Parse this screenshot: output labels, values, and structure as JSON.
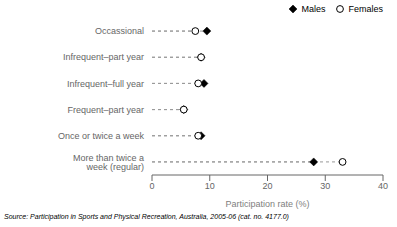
{
  "chart_data": {
    "type": "dot",
    "orientation": "horizontal",
    "categories": [
      "More than twice a week (regular)",
      "Once or twice a week",
      "Frequent–part year",
      "Infrequent–full year",
      "Infrequent–part year",
      "Occassional"
    ],
    "xlabel": "Participation rate (%)",
    "xlim": [
      0,
      40
    ],
    "xticks": [
      0,
      10,
      20,
      30,
      40
    ],
    "grid": false,
    "legend": "upper right",
    "line_style": "dashed",
    "color": "#999999",
    "annotation": "Source: Participation in Sports and Physical Recreation, Australia, 2005-06 (cat. no. 4177.0)",
    "series": [
      {
        "name": "Males",
        "color": "#000000",
        "marker": "diamond",
        "values": [
          28.0,
          8.5,
          5.5,
          9.0,
          8.5,
          9.5
        ]
      },
      {
        "name": "Females",
        "color": "#000000",
        "marker": "circle_open",
        "values": [
          33.0,
          8.0,
          5.5,
          8.0,
          8.5,
          7.5
        ]
      }
    ]
  }
}
